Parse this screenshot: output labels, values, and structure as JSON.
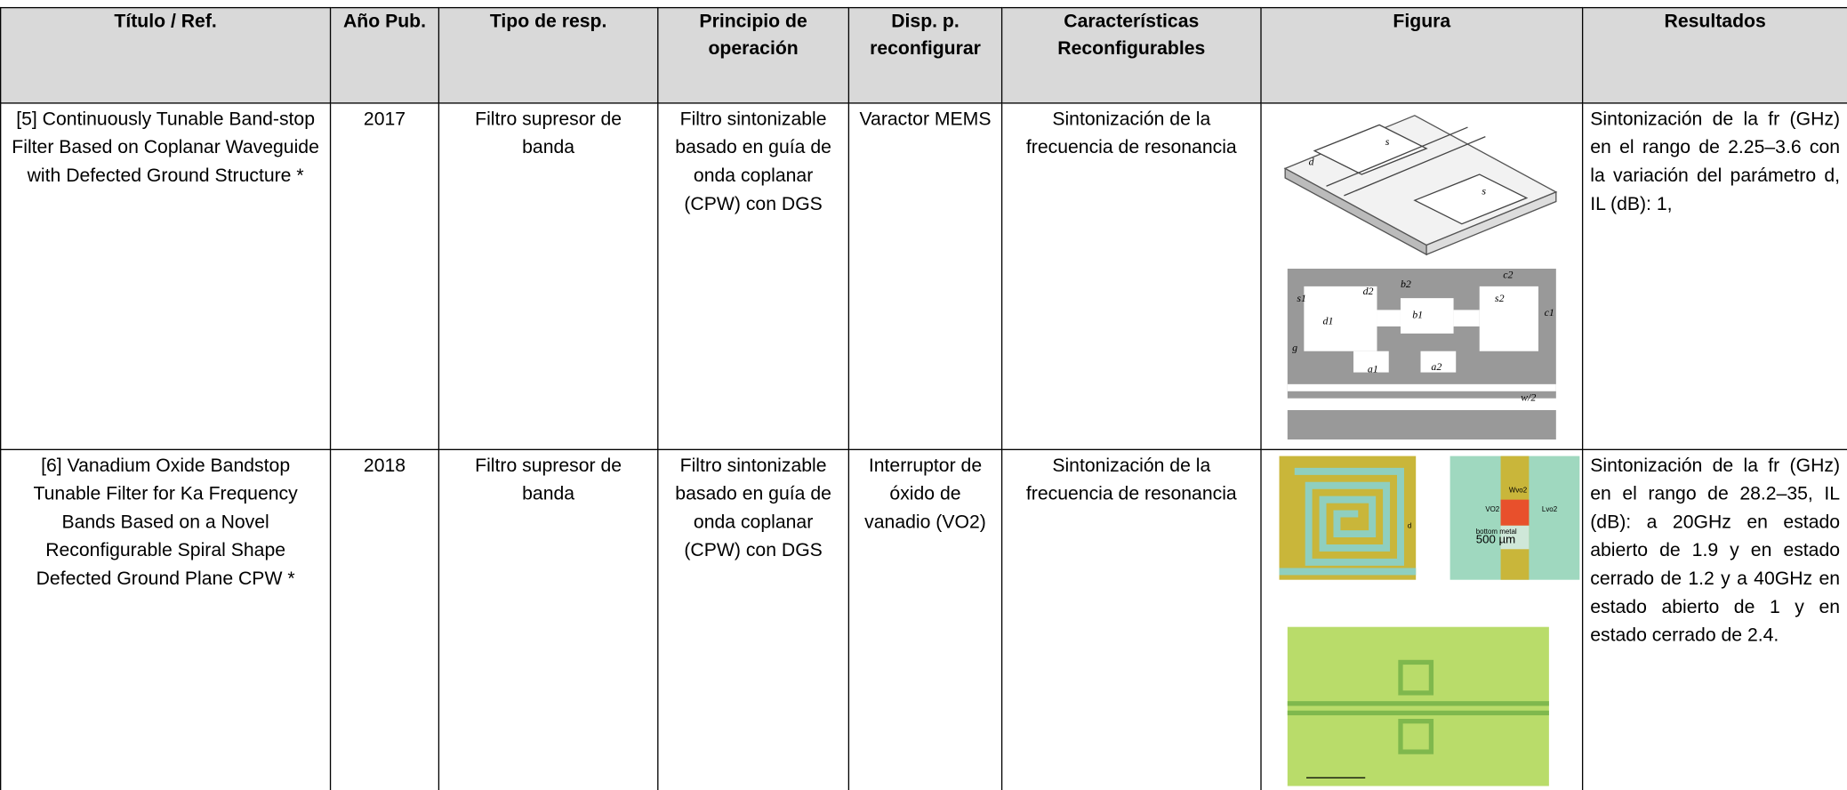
{
  "table": {
    "header": [
      "Título / Ref.",
      "Año Pub.",
      "Tipo de resp.",
      "Principio de operación",
      "Disp. p. reconfigurar",
      "Características Reconfigurables",
      "Figura",
      "Resultados"
    ],
    "rows": [
      {
        "title": "[5] Continuously Tunable Band-stop Filter Based on Coplanar Waveguide with Defected Ground Structure *",
        "year": 2017,
        "type": "Filtro supresor de banda",
        "principle": "Filtro sintonizable basado en guía de onda coplanar (CPW) con DGS",
        "device": "Varactor MEMS",
        "features": "Sintonización de la frecuencia de resonancia",
        "figure_labels": [
          "s",
          "d",
          "s",
          "s1",
          "d1",
          "d2",
          "b2",
          "b1",
          "c2",
          "s2",
          "c1",
          "g",
          "a1",
          "a2",
          "w/2"
        ],
        "results": "Sintonización de la fr (GHz) en el rango de 2.25–3.6 con la variación del parámetro d, IL (dB): 1,"
      },
      {
        "title": "[6] Vanadium Oxide Bandstop Tunable Filter for Ka Frequency Bands Based on a Novel Reconfigurable Spiral Shape Defected Ground Plane CPW *",
        "year": 2018,
        "type": "Filtro supresor de banda",
        "principle": "Filtro sintonizable basado en guía de onda coplanar (CPW) con DGS",
        "device": "Interruptor de óxido de vanadio (VO2)",
        "features": "Sintonización de la frecuencia de resonancia",
        "figure_labels": [
          "d",
          "Wvo2",
          "VO2",
          "Lvo2",
          "bottom metal",
          "500 µm"
        ],
        "results": "Sintonización de la fr (GHz) en el rango de 28.2–35, IL (dB): a 20GHz en estado abierto de 1.9 y en estado cerrado de 1.2 y a 40GHz en estado abierto de 1 y en estado cerrado de 2.4."
      }
    ]
  }
}
